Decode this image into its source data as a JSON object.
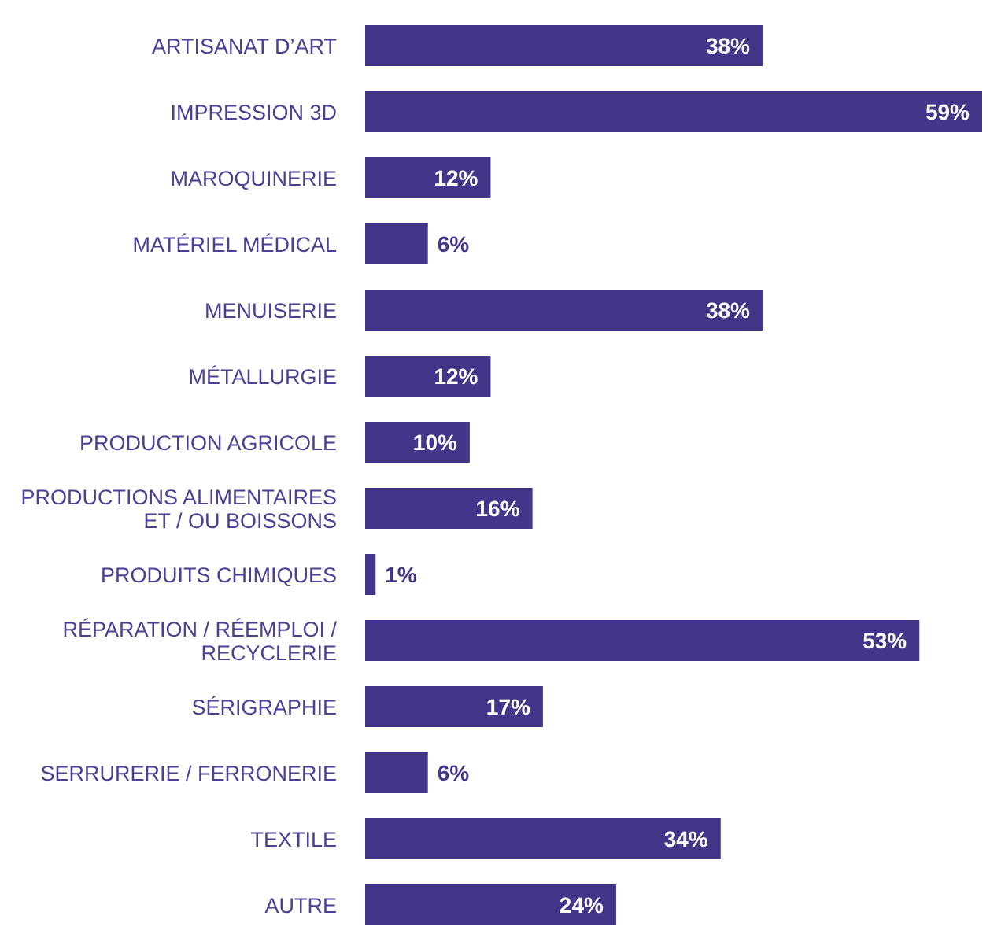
{
  "chart_data": {
    "type": "bar",
    "orientation": "horizontal",
    "categories": [
      "ARTISANAT D’ART",
      "IMPRESSION 3D",
      "MAROQUINERIE",
      "MATÉRIEL MÉDICAL",
      "MENUISERIE",
      "MÉTALLURGIE",
      "PRODUCTION AGRICOLE",
      "PRODUCTIONS ALIMENTAIRES ET / OU BOISSONS",
      "PRODUITS CHIMIQUES",
      "RÉPARATION / RÉEMPLOI / RECYCLERIE",
      "SÉRIGRAPHIE",
      "SERRURERIE / FERRONERIE",
      "TEXTILE",
      "AUTRE"
    ],
    "values": [
      38,
      59,
      12,
      6,
      38,
      12,
      10,
      16,
      1,
      53,
      17,
      6,
      34,
      24
    ],
    "value_labels": [
      "38%",
      "59%",
      "12%",
      "6%",
      "38%",
      "12%",
      "10%",
      "16%",
      "1%",
      "53%",
      "17%",
      "6%",
      "34%",
      "24%"
    ],
    "color": "#43358a"
  }
}
